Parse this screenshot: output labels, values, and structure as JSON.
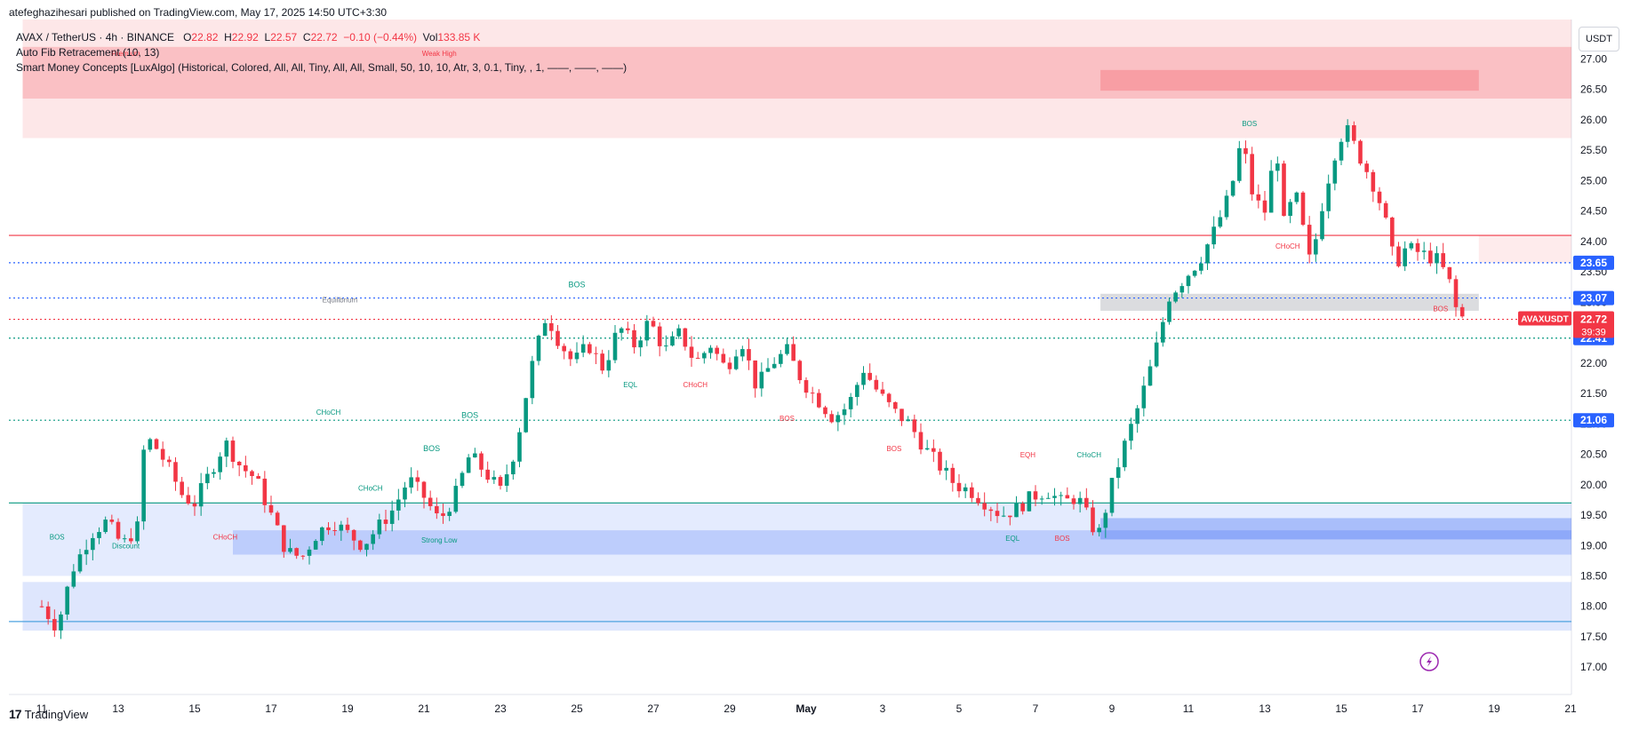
{
  "header": {
    "published": "atefeghazihesari published on TradingView.com, May 17, 2025 14:50 UTC+3:30"
  },
  "legend": {
    "symbol": "AVAX / TetherUS · 4h · BINANCE",
    "o_label": "O",
    "o_value": "22.82",
    "h_label": "H",
    "h_value": "22.92",
    "l_label": "L",
    "l_value": "22.57",
    "c_label": "C",
    "c_value": "22.72",
    "change": "−0.10 (−0.44%)",
    "vol_label": "Vol",
    "vol_value": "133.85 K",
    "indicator_1": "Auto Fib Retracement (10, 13)",
    "indicator_2": "Smart Money Concepts [LuxAlgo] (Historical, Colored, All, All, Tiny, All, All, Small, 50, 10, 10, Atr, 3, 0.1, Tiny, , 1, ——, ——, ——)"
  },
  "currency": "USDT",
  "footer": {
    "brand": "TradingView",
    "logo": "17"
  },
  "colors": {
    "up": "#089981",
    "down": "#f23645",
    "accent": "#2962ff",
    "premium_zone": "#f23645",
    "discount_zone": "#2157f3",
    "equilibrium_zone": "#878b94"
  },
  "icons": {
    "flash": "lightning-icon"
  },
  "chart_data": {
    "type": "candlestick",
    "symbol": "AVAXUSDT",
    "timeframe": "4h",
    "x_ticks": [
      "11",
      "13",
      "15",
      "17",
      "19",
      "21",
      "23",
      "25",
      "27",
      "29",
      "May",
      "3",
      "5",
      "7",
      "9",
      "11",
      "13",
      "15",
      "17",
      "19",
      "21"
    ],
    "y_ticks": [
      "17.00",
      "17.50",
      "18.00",
      "18.50",
      "19.00",
      "19.50",
      "20.00",
      "20.50",
      "21.00",
      "21.50",
      "22.00",
      "22.50",
      "23.00",
      "23.50",
      "24.00",
      "24.50",
      "25.00",
      "25.50",
      "26.00",
      "26.50",
      "27.00"
    ],
    "ylim": [
      16.55,
      27.65
    ],
    "price_tags": [
      {
        "label": "23.65",
        "value": 23.65,
        "color": "#2962ff"
      },
      {
        "label": "23.07",
        "value": 23.07,
        "color": "#2962ff"
      },
      {
        "label": "22.41",
        "value": 22.41,
        "color": "#2962ff"
      },
      {
        "label": "21.06",
        "value": 21.06,
        "color": "#2962ff"
      }
    ],
    "current": {
      "symbol": "AVAXUSDT",
      "price": "22.72",
      "countdown": "39:39",
      "value": 22.72
    },
    "horizontal_lines": [
      {
        "value": 24.1,
        "style": "solid",
        "color": "#f23645"
      },
      {
        "value": 23.65,
        "style": "dotted",
        "color": "#2962ff"
      },
      {
        "value": 23.07,
        "style": "dotted",
        "color": "#2962ff"
      },
      {
        "value": 22.72,
        "style": "dotted",
        "color": "#f23645"
      },
      {
        "value": 22.41,
        "style": "dotted",
        "color": "#089981"
      },
      {
        "value": 21.06,
        "style": "dotted",
        "color": "#089981"
      },
      {
        "value": 19.7,
        "style": "solid",
        "color": "#089981"
      },
      {
        "value": 17.75,
        "style": "solid",
        "color": "#4fa3e0"
      }
    ],
    "labels": [
      {
        "text": "Premium",
        "x": 12.2,
        "y": 27.05,
        "color": "#f23645"
      },
      {
        "text": "Weak High",
        "x": 20.4,
        "y": 27.05,
        "color": "#f23645"
      },
      {
        "text": "Equilibrium",
        "x": 17.8,
        "y": 23.0,
        "color": "#787b86"
      },
      {
        "text": "Discount",
        "x": 12.2,
        "y": 18.95,
        "color": "#089981"
      },
      {
        "text": "Strong Low",
        "x": 20.4,
        "y": 19.05,
        "color": "#089981"
      },
      {
        "text": "BOS",
        "x": 24.0,
        "y": 23.25,
        "color": "#089981"
      },
      {
        "text": "CHoCH",
        "x": 17.5,
        "y": 21.15,
        "color": "#089981"
      },
      {
        "text": "BOS",
        "x": 10.4,
        "y": 19.1,
        "color": "#089981"
      },
      {
        "text": "CHoCH",
        "x": 14.8,
        "y": 19.1,
        "color": "#f23645"
      },
      {
        "text": "CHoCH",
        "x": 18.6,
        "y": 19.9,
        "color": "#089981"
      },
      {
        "text": "BOS",
        "x": 20.2,
        "y": 20.55,
        "color": "#089981"
      },
      {
        "text": "BOS",
        "x": 21.2,
        "y": 21.1,
        "color": "#089981"
      },
      {
        "text": "EQL",
        "x": 25.4,
        "y": 21.6,
        "color": "#089981"
      },
      {
        "text": "CHoCH",
        "x": 27.1,
        "y": 21.6,
        "color": "#f23645"
      },
      {
        "text": "BOS",
        "x": 29.5,
        "y": 21.05,
        "color": "#f23645"
      },
      {
        "text": "BOS",
        "x": 32.3,
        "y": 20.55,
        "color": "#f23645"
      },
      {
        "text": "EQH",
        "x": 35.8,
        "y": 20.45,
        "color": "#f23645"
      },
      {
        "text": "CHoCH",
        "x": 37.4,
        "y": 20.45,
        "color": "#089981"
      },
      {
        "text": "EQL",
        "x": 35.4,
        "y": 19.08,
        "color": "#089981"
      },
      {
        "text": "BOS",
        "x": 36.7,
        "y": 19.08,
        "color": "#f23645"
      },
      {
        "text": "BOS",
        "x": 41.6,
        "y": 25.9,
        "color": "#089981"
      },
      {
        "text": "CHoCH",
        "x": 42.6,
        "y": 23.88,
        "color": "#f23645"
      },
      {
        "text": "BOS",
        "x": 46.6,
        "y": 22.85,
        "color": "#f23645"
      }
    ],
    "zones": [
      {
        "name": "premium-band",
        "x1": 9.5,
        "x2": 50.3,
        "y1": 25.7,
        "y2": 27.65,
        "color": "#f23645",
        "opacity": 0.12
      },
      {
        "name": "weak-high-band",
        "x1": 9.5,
        "x2": 50.3,
        "y1": 26.35,
        "y2": 27.2,
        "color": "#f23645",
        "opacity": 0.22
      },
      {
        "name": "premium-inner",
        "x1": 37.7,
        "x2": 47.6,
        "y1": 26.48,
        "y2": 26.82,
        "color": "#f23645",
        "opacity": 0.25
      },
      {
        "name": "bearish-ob",
        "x1": 47.6,
        "x2": 50.3,
        "y1": 23.65,
        "y2": 24.1,
        "color": "#f23645",
        "opacity": 0.1
      },
      {
        "name": "equilibrium",
        "x1": 37.7,
        "x2": 47.6,
        "y1": 22.86,
        "y2": 23.14,
        "color": "#878b94",
        "opacity": 0.3
      },
      {
        "name": "discount-band",
        "x1": 9.5,
        "x2": 50.3,
        "y1": 18.5,
        "y2": 19.7,
        "color": "#2157f3",
        "opacity": 0.12
      },
      {
        "name": "discount-inner",
        "x1": 15.0,
        "x2": 50.3,
        "y1": 18.85,
        "y2": 19.25,
        "color": "#2157f3",
        "opacity": 0.2
      },
      {
        "name": "strong-low-band",
        "x1": 37.7,
        "x2": 50.3,
        "y1": 19.1,
        "y2": 19.45,
        "color": "#2157f3",
        "opacity": 0.3
      },
      {
        "name": "lower-demand",
        "x1": 9.5,
        "x2": 50.3,
        "y1": 17.6,
        "y2": 18.4,
        "color": "#2157f3",
        "opacity": 0.15
      }
    ],
    "waypoints": [
      [
        10.0,
        18.0
      ],
      [
        10.4,
        17.65
      ],
      [
        10.8,
        18.6
      ],
      [
        11.3,
        19.2
      ],
      [
        11.7,
        19.4
      ],
      [
        12.1,
        19.0
      ],
      [
        12.5,
        19.3
      ],
      [
        12.7,
        20.8
      ],
      [
        13.0,
        20.6
      ],
      [
        13.3,
        20.3
      ],
      [
        13.7,
        19.8
      ],
      [
        14.0,
        19.7
      ],
      [
        14.4,
        20.2
      ],
      [
        14.8,
        20.7
      ],
      [
        15.2,
        20.3
      ],
      [
        15.6,
        20.1
      ],
      [
        16.0,
        19.5
      ],
      [
        16.4,
        18.9
      ],
      [
        16.8,
        18.8
      ],
      [
        17.2,
        19.2
      ],
      [
        17.6,
        19.4
      ],
      [
        18.0,
        19.2
      ],
      [
        18.4,
        19.0
      ],
      [
        18.8,
        19.3
      ],
      [
        19.2,
        19.6
      ],
      [
        19.6,
        20.1
      ],
      [
        20.0,
        19.8
      ],
      [
        20.4,
        19.4
      ],
      [
        20.8,
        19.8
      ],
      [
        21.2,
        20.5
      ],
      [
        21.6,
        20.2
      ],
      [
        22.0,
        19.9
      ],
      [
        22.4,
        20.6
      ],
      [
        22.8,
        21.9
      ],
      [
        23.2,
        22.8
      ],
      [
        23.5,
        22.4
      ],
      [
        23.9,
        22.0
      ],
      [
        24.3,
        22.3
      ],
      [
        24.7,
        21.9
      ],
      [
        25.1,
        22.6
      ],
      [
        25.5,
        22.3
      ],
      [
        25.9,
        22.7
      ],
      [
        26.3,
        22.2
      ],
      [
        26.7,
        22.5
      ],
      [
        27.1,
        22.0
      ],
      [
        27.5,
        22.3
      ],
      [
        27.9,
        21.9
      ],
      [
        28.3,
        22.4
      ],
      [
        28.7,
        21.6
      ],
      [
        29.1,
        22.0
      ],
      [
        29.5,
        22.2
      ],
      [
        29.9,
        21.7
      ],
      [
        30.3,
        21.4
      ],
      [
        30.7,
        21.1
      ],
      [
        31.1,
        21.3
      ],
      [
        31.5,
        21.9
      ],
      [
        31.9,
        21.5
      ],
      [
        32.3,
        21.2
      ],
      [
        32.7,
        21.0
      ],
      [
        33.1,
        20.6
      ],
      [
        33.5,
        20.3
      ],
      [
        33.9,
        20.0
      ],
      [
        34.3,
        19.9
      ],
      [
        34.7,
        19.7
      ],
      [
        35.1,
        19.5
      ],
      [
        35.5,
        19.6
      ],
      [
        35.9,
        19.8
      ],
      [
        36.3,
        19.9
      ],
      [
        36.7,
        19.7
      ],
      [
        37.1,
        19.8
      ],
      [
        37.5,
        19.3
      ],
      [
        37.7,
        19.2
      ],
      [
        37.9,
        19.8
      ],
      [
        38.3,
        20.6
      ],
      [
        38.7,
        21.3
      ],
      [
        39.1,
        22.1
      ],
      [
        39.5,
        23.1
      ],
      [
        39.9,
        23.4
      ],
      [
        40.3,
        23.7
      ],
      [
        40.7,
        24.2
      ],
      [
        41.1,
        24.8
      ],
      [
        41.4,
        25.7
      ],
      [
        41.7,
        24.7
      ],
      [
        42.0,
        24.5
      ],
      [
        42.3,
        25.6
      ],
      [
        42.5,
        24.3
      ],
      [
        42.8,
        24.8
      ],
      [
        43.2,
        23.6
      ],
      [
        43.5,
        24.6
      ],
      [
        43.8,
        25.4
      ],
      [
        44.1,
        25.9
      ],
      [
        44.4,
        25.5
      ],
      [
        44.8,
        25.0
      ],
      [
        45.1,
        24.5
      ],
      [
        45.4,
        23.6
      ],
      [
        45.7,
        23.9
      ],
      [
        46.1,
        23.8
      ],
      [
        46.5,
        23.7
      ],
      [
        46.8,
        23.4
      ],
      [
        47.0,
        22.9
      ],
      [
        47.2,
        22.72
      ]
    ]
  }
}
